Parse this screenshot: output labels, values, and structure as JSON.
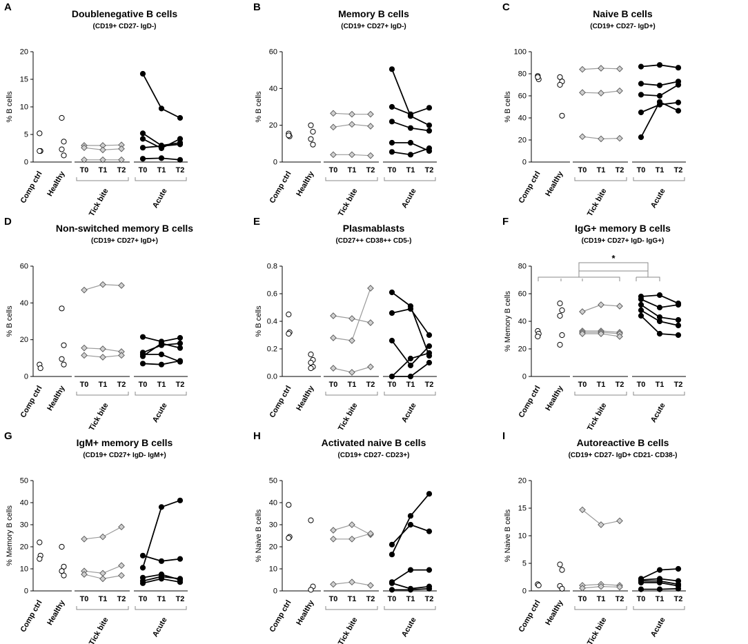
{
  "figure": {
    "group_labels": [
      "Comp ctrl",
      "Healthy"
    ],
    "timepoints": [
      "T0",
      "T1",
      "T2"
    ],
    "bracket_labels": [
      "Tick bite",
      "Acute"
    ],
    "colors": {
      "axis": "#000000",
      "open_marker": "#ffffff",
      "diamond_fill": "#cfcfcf",
      "tick_line": "#9a9a9a",
      "acute": "#000000",
      "bracket": "#888888"
    }
  },
  "chart_data": [
    {
      "type": "scatter",
      "letter": "A",
      "title": "Doublenegative B cells",
      "subtitle": "(CD19+ CD27- IgD-)",
      "ylabel": "% B cells",
      "ylim": [
        0,
        20
      ],
      "yticks": [
        0,
        5,
        10,
        15,
        20
      ],
      "comp_ctrl": [
        5.2,
        2.0,
        2.0
      ],
      "healthy": [
        8.0,
        3.7,
        2.3,
        1.2
      ],
      "tick_bite": [
        [
          3.0,
          3.0,
          3.1
        ],
        [
          2.6,
          2.2,
          2.4
        ],
        [
          0.4,
          0.4,
          0.4
        ]
      ],
      "acute": [
        [
          16.0,
          9.7,
          8.0
        ],
        [
          5.2,
          3.0,
          3.5
        ],
        [
          4.2,
          2.5,
          4.2
        ],
        [
          2.6,
          2.9,
          3.2
        ],
        [
          0.6,
          0.7,
          0.4
        ]
      ]
    },
    {
      "type": "scatter",
      "letter": "B",
      "title": "Memory B cells",
      "subtitle": "(CD19+ CD27+ IgD-)",
      "ylabel": "% B cells",
      "ylim": [
        0,
        60
      ],
      "yticks": [
        0,
        20,
        40,
        60
      ],
      "comp_ctrl": [
        15.5,
        14.0,
        14.5
      ],
      "healthy": [
        20.0,
        16.5,
        12.5,
        9.5
      ],
      "tick_bite": [
        [
          26.5,
          26.0,
          26.0
        ],
        [
          19.0,
          20.5,
          19.5
        ],
        [
          4.0,
          4.0,
          3.5
        ]
      ],
      "acute": [
        [
          50.5,
          25.0,
          20.0
        ],
        [
          30.0,
          26.0,
          29.5
        ],
        [
          22.0,
          18.5,
          17.0
        ],
        [
          10.5,
          10.5,
          6.0
        ],
        [
          5.5,
          4.0,
          7.5
        ]
      ]
    },
    {
      "type": "scatter",
      "letter": "C",
      "title": "Naive B cells",
      "subtitle": "(CD19+ CD27- IgD+)",
      "ylabel": "% B cells",
      "ylim": [
        0,
        100
      ],
      "yticks": [
        0,
        20,
        40,
        60,
        80,
        100
      ],
      "comp_ctrl": [
        78.0,
        75.0,
        77.0
      ],
      "healthy": [
        77.0,
        73.0,
        70.0,
        42.0
      ],
      "tick_bite": [
        [
          84.0,
          85.0,
          84.5
        ],
        [
          63.0,
          62.5,
          64.5
        ],
        [
          23.0,
          21.0,
          21.5
        ]
      ],
      "acute": [
        [
          86.5,
          88.0,
          85.5
        ],
        [
          71.0,
          69.5,
          73.0
        ],
        [
          61.0,
          60.0,
          70.0
        ],
        [
          45.0,
          52.0,
          54.0
        ],
        [
          22.5,
          54.5,
          46.5
        ]
      ]
    },
    {
      "type": "scatter",
      "letter": "D",
      "title": "Non-switched memory B cells",
      "subtitle": "(CD19+ CD27+ IgD+)",
      "ylabel": "% B cells",
      "ylim": [
        0,
        60
      ],
      "yticks": [
        0,
        20,
        40,
        60
      ],
      "comp_ctrl": [
        6.5,
        4.5
      ],
      "healthy": [
        37.0,
        17.0,
        9.5,
        6.5
      ],
      "tick_bite": [
        [
          47.0,
          50.0,
          49.5
        ],
        [
          15.5,
          15.0,
          13.5
        ],
        [
          11.5,
          10.5,
          11.5
        ]
      ],
      "acute": [
        [
          21.5,
          19.0,
          21.0
        ],
        [
          13.0,
          17.0,
          18.0
        ],
        [
          11.0,
          18.0,
          15.5
        ],
        [
          12.0,
          12.0,
          8.0
        ],
        [
          7.0,
          6.5,
          8.5
        ]
      ]
    },
    {
      "type": "scatter",
      "letter": "E",
      "title": "Plasmablasts",
      "subtitle": "(CD27++ CD38++ CD5-)",
      "ylabel": "% B cells",
      "ylim": [
        0,
        0.8
      ],
      "yticks": [
        0.0,
        0.2,
        0.4,
        0.6,
        0.8
      ],
      "comp_ctrl": [
        0.45,
        0.32,
        0.31
      ],
      "healthy": [
        0.16,
        0.12,
        0.1,
        0.07,
        0.06
      ],
      "tick_bite": [
        [
          0.44,
          0.42,
          0.39
        ],
        [
          0.28,
          0.26,
          0.64
        ],
        [
          0.06,
          0.03,
          0.07
        ]
      ],
      "acute": [
        [
          0.61,
          0.51,
          0.15
        ],
        [
          0.46,
          0.49,
          0.3
        ],
        [
          0.26,
          0.08,
          0.22
        ],
        [
          0.0,
          0.13,
          0.17
        ],
        [
          0.0,
          0.0,
          0.1
        ]
      ]
    },
    {
      "type": "scatter",
      "letter": "F",
      "title": "IgG+ memory B cells",
      "subtitle": "(CD19+ CD27+ IgD- IgG+)",
      "ylabel": "% Memory B cells",
      "ylim": [
        0,
        80
      ],
      "yticks": [
        0,
        20,
        40,
        60,
        80
      ],
      "significance": "*",
      "comp_ctrl": [
        33.0,
        31.0,
        29.0
      ],
      "healthy": [
        53.0,
        48.0,
        44.0,
        30.0,
        23.0
      ],
      "tick_bite": [
        [
          47.0,
          52.0,
          51.0
        ],
        [
          33.0,
          33.0,
          32.0
        ],
        [
          32.0,
          32.0,
          31.0
        ],
        [
          31.0,
          31.0,
          29.0
        ]
      ],
      "acute": [
        [
          58.0,
          59.0,
          53.0
        ],
        [
          56.0,
          50.0,
          52.0
        ],
        [
          52.0,
          43.0,
          41.0
        ],
        [
          48.0,
          40.0,
          37.0
        ],
        [
          44.0,
          31.0,
          30.0
        ]
      ]
    },
    {
      "type": "scatter",
      "letter": "G",
      "title": "IgM+ memory B cells",
      "subtitle": "(CD19+ CD27+ IgD- IgM+)",
      "ylabel": "% Memory B cells",
      "ylim": [
        0,
        50
      ],
      "yticks": [
        0,
        10,
        20,
        30,
        40,
        50
      ],
      "comp_ctrl": [
        22.0,
        16.0,
        14.5
      ],
      "healthy": [
        20.0,
        11.0,
        9.0,
        7.0
      ],
      "tick_bite": [
        [
          23.5,
          24.5,
          29.0
        ],
        [
          9.0,
          8.0,
          11.5
        ],
        [
          7.5,
          5.5,
          7.0
        ]
      ],
      "acute": [
        [
          10.5,
          38.0,
          41.0
        ],
        [
          16.0,
          13.5,
          14.5
        ],
        [
          6.0,
          7.5,
          5.0
        ],
        [
          4.5,
          6.5,
          5.5
        ],
        [
          3.5,
          5.5,
          4.0
        ]
      ]
    },
    {
      "type": "scatter",
      "letter": "H",
      "title": "Activated naive B cells",
      "subtitle": "(CD19+ CD27- CD23+)",
      "ylabel": "% Naive B cells",
      "ylim": [
        0,
        50
      ],
      "yticks": [
        0,
        10,
        20,
        30,
        40,
        50
      ],
      "comp_ctrl": [
        39.0,
        24.5,
        24.0
      ],
      "healthy": [
        32.0,
        2.0,
        0.5
      ],
      "tick_bite": [
        [
          27.5,
          30.0,
          25.5
        ],
        [
          23.5,
          23.5,
          26.0
        ],
        [
          3.0,
          4.0,
          2.5
        ]
      ],
      "acute": [
        [
          16.5,
          34.0,
          44.0
        ],
        [
          21.0,
          30.0,
          27.0
        ],
        [
          4.0,
          9.5,
          9.5
        ],
        [
          3.5,
          1.0,
          2.0
        ],
        [
          0.5,
          0.5,
          1.0
        ]
      ]
    },
    {
      "type": "scatter",
      "letter": "I",
      "title": "Autoreactive B cells",
      "subtitle": "(CD19+ CD27- IgD+ CD21- CD38-)",
      "ylabel": "% Naive B cells",
      "ylim": [
        0,
        20
      ],
      "yticks": [
        0,
        5,
        10,
        15,
        20
      ],
      "comp_ctrl": [
        1.2,
        1.0
      ],
      "healthy": [
        4.8,
        3.8,
        0.9,
        0.4
      ],
      "tick_bite": [
        [
          14.7,
          12.0,
          12.7
        ],
        [
          1.0,
          1.2,
          1.0
        ],
        [
          0.5,
          0.8,
          0.7
        ]
      ],
      "acute": [
        [
          2.2,
          3.8,
          4.0
        ],
        [
          2.0,
          2.2,
          1.8
        ],
        [
          1.8,
          1.8,
          1.2
        ],
        [
          1.5,
          1.5,
          0.9
        ],
        [
          0.3,
          0.3,
          0.4
        ]
      ]
    }
  ]
}
